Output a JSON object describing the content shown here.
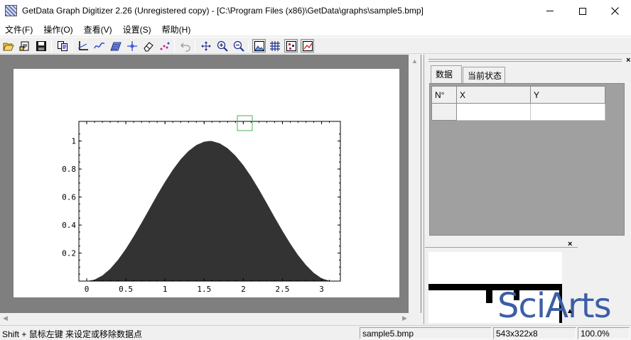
{
  "window": {
    "title": "GetData Graph Digitizer 2.26 (Unregistered copy) - [C:\\Program Files (x86)\\GetData\\graphs\\sample5.bmp]"
  },
  "menu": [
    {
      "label": "文件(F)"
    },
    {
      "label": "操作(O)"
    },
    {
      "label": "查看(V)"
    },
    {
      "label": "设置(S)"
    },
    {
      "label": "帮助(H)"
    }
  ],
  "toolbar": {
    "icons": [
      "open-folder-icon",
      "open-file-icon",
      "save-icon",
      "copy-icon",
      "axes-icon",
      "auto-trace-line-icon",
      "area-trace-icon",
      "point-capture-icon",
      "eraser-icon",
      "digitize-points-icon",
      "undo-icon",
      "pan-icon",
      "zoom-in-icon",
      "zoom-out-icon",
      "show-image-icon",
      "grid-icon",
      "points-icon",
      "graph-icon"
    ]
  },
  "plot": {
    "x_ticks": [
      "0",
      "0.5",
      "1",
      "1.5",
      "2",
      "2.5",
      "3"
    ],
    "y_ticks": [
      "0.2",
      "0.4",
      "0.6",
      "0.8",
      "1"
    ],
    "colors": {
      "fill": "#333333",
      "marker": "#4caf50"
    }
  },
  "chart_data": {
    "type": "area",
    "title": "",
    "xlabel": "",
    "ylabel": "",
    "xlim": [
      -0.1,
      3.24
    ],
    "ylim": [
      0,
      1.14
    ],
    "series": [
      {
        "x": [
          0,
          0.1,
          0.2,
          0.3,
          0.4,
          0.5,
          0.6,
          0.7,
          0.8,
          0.9,
          1.0,
          1.1,
          1.2,
          1.3,
          1.4,
          1.5,
          1.57,
          1.6,
          1.7,
          1.8,
          1.9,
          2.0,
          2.1,
          2.2,
          2.3,
          2.4,
          2.5,
          2.6,
          2.7,
          2.8,
          2.9,
          3.0,
          3.1,
          3.14
        ],
        "y": [
          0,
          0.01,
          0.04,
          0.087,
          0.152,
          0.23,
          0.319,
          0.415,
          0.515,
          0.614,
          0.708,
          0.794,
          0.869,
          0.928,
          0.971,
          0.995,
          1.0,
          0.999,
          0.983,
          0.948,
          0.895,
          0.827,
          0.746,
          0.654,
          0.556,
          0.456,
          0.358,
          0.267,
          0.185,
          0.115,
          0.059,
          0.02,
          0.002,
          0
        ]
      }
    ],
    "grid": false,
    "legend": "none"
  },
  "panel": {
    "tabs": [
      {
        "label": "数据"
      },
      {
        "label": "当前状态"
      }
    ],
    "columns": [
      "N°",
      "X",
      "Y"
    ]
  },
  "status": {
    "message": "Shift + 鼠标左键 来设定或移除数据点",
    "file": "sample5.bmp",
    "image_size": "543x322x8",
    "zoom": "100.0%"
  },
  "watermark": "SciArts"
}
